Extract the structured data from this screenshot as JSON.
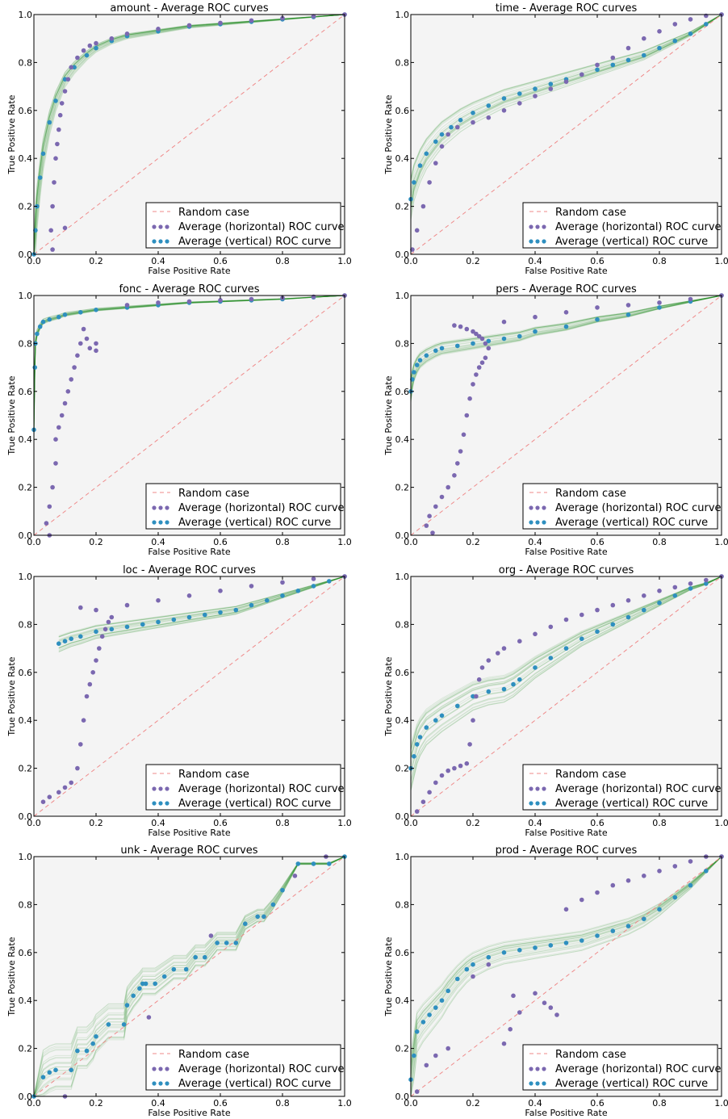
{
  "figure": {
    "xlabel": "False Positive Rate",
    "ylabel": "True Positive Rate",
    "ticks": [
      "0.0",
      "0.2",
      "0.4",
      "0.6",
      "0.8",
      "1.0"
    ],
    "legend": {
      "random": "Random case",
      "horizontal": "Average (horizontal) ROC curve",
      "vertical": "Average (vertical) ROC curve"
    },
    "colors": {
      "background": "#f4f4f4",
      "random": "#ef8a8a",
      "horizontal": "#7b68b0",
      "vertical": "#2e8fbf",
      "curves": "#1f8a1f"
    }
  },
  "chart_data": [
    {
      "type": "line",
      "title": "amount - Average ROC curves",
      "xlim": [
        0,
        1
      ],
      "ylim": [
        0,
        1
      ],
      "grid": false,
      "legend_position": "lower-right",
      "series": [
        {
          "name": "Average (vertical) ROC curve",
          "x": [
            0.0,
            0.005,
            0.01,
            0.02,
            0.03,
            0.05,
            0.07,
            0.1,
            0.13,
            0.17,
            0.2,
            0.25,
            0.3,
            0.4,
            0.5,
            0.6,
            0.7,
            0.8,
            0.9,
            1.0
          ],
          "y": [
            0.0,
            0.1,
            0.2,
            0.32,
            0.42,
            0.55,
            0.64,
            0.73,
            0.78,
            0.83,
            0.86,
            0.89,
            0.91,
            0.93,
            0.95,
            0.96,
            0.97,
            0.98,
            0.99,
            1.0
          ]
        },
        {
          "name": "Average (horizontal) ROC curve",
          "x": [
            0.1,
            0.06,
            0.055,
            0.06,
            0.065,
            0.07,
            0.075,
            0.08,
            0.085,
            0.09,
            0.1,
            0.11,
            0.12,
            0.14,
            0.16,
            0.18,
            0.2,
            0.25,
            0.3,
            0.4,
            0.5,
            0.6,
            0.7,
            0.8,
            0.9,
            1.0
          ],
          "y": [
            0.11,
            0.02,
            0.1,
            0.2,
            0.3,
            0.4,
            0.46,
            0.52,
            0.58,
            0.63,
            0.68,
            0.73,
            0.78,
            0.82,
            0.85,
            0.87,
            0.88,
            0.9,
            0.92,
            0.94,
            0.955,
            0.965,
            0.975,
            0.985,
            0.993,
            1.0
          ]
        }
      ]
    },
    {
      "type": "line",
      "title": "time - Average ROC curves",
      "xlim": [
        0,
        1
      ],
      "ylim": [
        0,
        1
      ],
      "grid": false,
      "legend_position": "lower-right",
      "series": [
        {
          "name": "Average (vertical) ROC curve",
          "x": [
            0.0,
            0.01,
            0.03,
            0.05,
            0.08,
            0.1,
            0.13,
            0.16,
            0.2,
            0.25,
            0.3,
            0.35,
            0.4,
            0.45,
            0.5,
            0.55,
            0.6,
            0.65,
            0.7,
            0.75,
            0.8,
            0.85,
            0.9,
            0.95,
            1.0
          ],
          "y": [
            0.23,
            0.3,
            0.37,
            0.42,
            0.47,
            0.5,
            0.53,
            0.56,
            0.59,
            0.62,
            0.65,
            0.67,
            0.69,
            0.71,
            0.73,
            0.75,
            0.77,
            0.79,
            0.81,
            0.83,
            0.86,
            0.89,
            0.92,
            0.96,
            1.0
          ]
        },
        {
          "name": "Average (horizontal) ROC curve",
          "x": [
            0.005,
            0.02,
            0.04,
            0.06,
            0.08,
            0.1,
            0.12,
            0.15,
            0.2,
            0.25,
            0.3,
            0.35,
            0.4,
            0.45,
            0.5,
            0.55,
            0.6,
            0.65,
            0.7,
            0.75,
            0.8,
            0.85,
            0.9,
            0.95,
            1.0
          ],
          "y": [
            0.02,
            0.1,
            0.2,
            0.3,
            0.38,
            0.45,
            0.5,
            0.53,
            0.55,
            0.57,
            0.6,
            0.63,
            0.66,
            0.69,
            0.72,
            0.75,
            0.79,
            0.82,
            0.86,
            0.9,
            0.93,
            0.96,
            0.98,
            0.995,
            1.0
          ]
        }
      ]
    },
    {
      "type": "line",
      "title": "fonc - Average ROC curves",
      "xlim": [
        0,
        1
      ],
      "ylim": [
        0,
        1
      ],
      "grid": false,
      "legend_position": "lower-right",
      "series": [
        {
          "name": "Average (vertical) ROC curve",
          "x": [
            0.0,
            0.003,
            0.005,
            0.01,
            0.02,
            0.03,
            0.05,
            0.08,
            0.1,
            0.15,
            0.2,
            0.3,
            0.4,
            0.5,
            0.6,
            0.7,
            0.8,
            0.9,
            1.0
          ],
          "y": [
            0.44,
            0.7,
            0.8,
            0.84,
            0.87,
            0.89,
            0.9,
            0.91,
            0.92,
            0.93,
            0.94,
            0.95,
            0.96,
            0.97,
            0.975,
            0.98,
            0.985,
            0.993,
            1.0
          ]
        },
        {
          "name": "Average (horizontal) ROC curve",
          "x": [
            0.05,
            0.04,
            0.05,
            0.06,
            0.07,
            0.07,
            0.08,
            0.09,
            0.1,
            0.11,
            0.12,
            0.13,
            0.14,
            0.15,
            0.16,
            0.17,
            0.18,
            0.2,
            0.2,
            0.3,
            0.4,
            0.5,
            0.6,
            0.7,
            0.8,
            0.9,
            1.0
          ],
          "y": [
            0.0,
            0.05,
            0.12,
            0.2,
            0.3,
            0.4,
            0.45,
            0.5,
            0.55,
            0.6,
            0.65,
            0.7,
            0.75,
            0.8,
            0.86,
            0.82,
            0.78,
            0.77,
            0.8,
            0.96,
            0.97,
            0.975,
            0.98,
            0.985,
            0.99,
            0.995,
            1.0
          ]
        }
      ]
    },
    {
      "type": "line",
      "title": "pers - Average ROC curves",
      "xlim": [
        0,
        1
      ],
      "ylim": [
        0,
        1
      ],
      "grid": false,
      "legend_position": "lower-right",
      "series": [
        {
          "name": "Average (vertical) ROC curve",
          "x": [
            0.0,
            0.005,
            0.01,
            0.02,
            0.03,
            0.05,
            0.08,
            0.1,
            0.15,
            0.2,
            0.25,
            0.3,
            0.35,
            0.4,
            0.5,
            0.6,
            0.7,
            0.8,
            0.9,
            1.0
          ],
          "y": [
            0.6,
            0.65,
            0.68,
            0.71,
            0.73,
            0.75,
            0.77,
            0.78,
            0.79,
            0.8,
            0.81,
            0.82,
            0.83,
            0.85,
            0.87,
            0.9,
            0.92,
            0.95,
            0.975,
            1.0
          ]
        },
        {
          "name": "Average (horizontal) ROC curve",
          "x": [
            0.07,
            0.05,
            0.06,
            0.08,
            0.1,
            0.12,
            0.14,
            0.15,
            0.16,
            0.17,
            0.18,
            0.19,
            0.2,
            0.21,
            0.22,
            0.23,
            0.24,
            0.25,
            0.24,
            0.23,
            0.22,
            0.21,
            0.2,
            0.18,
            0.16,
            0.14,
            0.3,
            0.4,
            0.5,
            0.6,
            0.7,
            0.8,
            0.9,
            1.0
          ],
          "y": [
            0.01,
            0.04,
            0.08,
            0.12,
            0.16,
            0.2,
            0.25,
            0.3,
            0.35,
            0.42,
            0.5,
            0.57,
            0.63,
            0.67,
            0.7,
            0.72,
            0.74,
            0.78,
            0.8,
            0.82,
            0.83,
            0.84,
            0.85,
            0.86,
            0.87,
            0.875,
            0.89,
            0.91,
            0.93,
            0.95,
            0.96,
            0.97,
            0.985,
            1.0
          ]
        }
      ]
    },
    {
      "type": "line",
      "title": "loc - Average ROC curves",
      "xlim": [
        0,
        1
      ],
      "ylim": [
        0,
        1
      ],
      "grid": false,
      "legend_position": "lower-right",
      "series": [
        {
          "name": "Average (vertical) ROC curve",
          "x": [
            0.08,
            0.1,
            0.12,
            0.15,
            0.2,
            0.25,
            0.3,
            0.35,
            0.4,
            0.45,
            0.5,
            0.55,
            0.6,
            0.65,
            0.7,
            0.75,
            0.8,
            0.85,
            0.9,
            0.95,
            1.0
          ],
          "y": [
            0.72,
            0.73,
            0.74,
            0.75,
            0.77,
            0.78,
            0.79,
            0.8,
            0.81,
            0.82,
            0.83,
            0.84,
            0.85,
            0.86,
            0.88,
            0.9,
            0.92,
            0.94,
            0.96,
            0.98,
            1.0
          ]
        },
        {
          "name": "Average (horizontal) ROC curve",
          "x": [
            0.03,
            0.05,
            0.08,
            0.1,
            0.12,
            0.14,
            0.15,
            0.16,
            0.17,
            0.18,
            0.19,
            0.2,
            0.21,
            0.22,
            0.23,
            0.24,
            0.25,
            0.2,
            0.15,
            0.3,
            0.4,
            0.5,
            0.6,
            0.7,
            0.8,
            0.9,
            1.0
          ],
          "y": [
            0.06,
            0.08,
            0.1,
            0.12,
            0.14,
            0.2,
            0.3,
            0.4,
            0.5,
            0.55,
            0.6,
            0.65,
            0.7,
            0.75,
            0.78,
            0.81,
            0.83,
            0.86,
            0.87,
            0.88,
            0.9,
            0.92,
            0.94,
            0.96,
            0.975,
            0.99,
            1.0
          ]
        }
      ]
    },
    {
      "type": "line",
      "title": "org - Average ROC curves",
      "xlim": [
        0,
        1
      ],
      "ylim": [
        0,
        1
      ],
      "grid": false,
      "legend_position": "lower-right",
      "series": [
        {
          "name": "Average (vertical) ROC curve",
          "x": [
            0.0,
            0.01,
            0.02,
            0.03,
            0.05,
            0.08,
            0.1,
            0.15,
            0.2,
            0.25,
            0.3,
            0.33,
            0.35,
            0.4,
            0.45,
            0.5,
            0.55,
            0.6,
            0.65,
            0.7,
            0.75,
            0.8,
            0.85,
            0.9,
            0.95,
            1.0
          ],
          "y": [
            0.2,
            0.25,
            0.3,
            0.33,
            0.37,
            0.4,
            0.42,
            0.46,
            0.5,
            0.52,
            0.53,
            0.55,
            0.57,
            0.62,
            0.66,
            0.7,
            0.74,
            0.77,
            0.8,
            0.83,
            0.86,
            0.89,
            0.92,
            0.95,
            0.97,
            1.0
          ]
        },
        {
          "name": "Average (horizontal) ROC curve",
          "x": [
            0.02,
            0.04,
            0.06,
            0.08,
            0.1,
            0.12,
            0.14,
            0.16,
            0.18,
            0.19,
            0.2,
            0.21,
            0.22,
            0.23,
            0.25,
            0.28,
            0.3,
            0.35,
            0.4,
            0.45,
            0.5,
            0.55,
            0.6,
            0.65,
            0.7,
            0.75,
            0.8,
            0.85,
            0.9,
            0.95,
            1.0
          ],
          "y": [
            0.02,
            0.06,
            0.1,
            0.14,
            0.17,
            0.19,
            0.2,
            0.21,
            0.22,
            0.3,
            0.4,
            0.5,
            0.57,
            0.62,
            0.65,
            0.68,
            0.7,
            0.73,
            0.76,
            0.79,
            0.82,
            0.84,
            0.86,
            0.88,
            0.9,
            0.92,
            0.94,
            0.955,
            0.97,
            0.985,
            1.0
          ]
        }
      ]
    },
    {
      "type": "line",
      "title": "unk - Average ROC curves",
      "xlim": [
        0,
        1
      ],
      "ylim": [
        0,
        1
      ],
      "grid": false,
      "legend_position": "lower-right",
      "series": [
        {
          "name": "Average (vertical) ROC curve",
          "x": [
            0.0,
            0.03,
            0.05,
            0.07,
            0.12,
            0.14,
            0.17,
            0.19,
            0.2,
            0.24,
            0.29,
            0.3,
            0.32,
            0.34,
            0.35,
            0.36,
            0.39,
            0.42,
            0.45,
            0.49,
            0.52,
            0.55,
            0.59,
            0.62,
            0.65,
            0.68,
            0.72,
            0.74,
            0.77,
            0.8,
            0.85,
            0.9,
            0.95,
            1.0
          ],
          "y": [
            0.0,
            0.08,
            0.1,
            0.11,
            0.11,
            0.19,
            0.19,
            0.22,
            0.25,
            0.3,
            0.3,
            0.38,
            0.42,
            0.45,
            0.47,
            0.47,
            0.47,
            0.5,
            0.53,
            0.53,
            0.58,
            0.58,
            0.64,
            0.64,
            0.64,
            0.72,
            0.75,
            0.75,
            0.8,
            0.86,
            0.97,
            0.97,
            0.97,
            1.0
          ]
        },
        {
          "name": "Average (horizontal) ROC curve",
          "x": [
            0.1,
            0.37,
            0.57,
            0.84,
            0.94
          ],
          "y": [
            0.0,
            0.33,
            0.67,
            0.92,
            1.0
          ]
        }
      ]
    },
    {
      "type": "line",
      "title": "prod - Average ROC curves",
      "xlim": [
        0,
        1
      ],
      "ylim": [
        0,
        1
      ],
      "grid": false,
      "legend_position": "lower-right",
      "series": [
        {
          "name": "Average (vertical) ROC curve",
          "x": [
            0.0,
            0.01,
            0.02,
            0.04,
            0.06,
            0.08,
            0.1,
            0.12,
            0.15,
            0.18,
            0.2,
            0.25,
            0.3,
            0.35,
            0.4,
            0.45,
            0.5,
            0.55,
            0.6,
            0.65,
            0.7,
            0.75,
            0.8,
            0.85,
            0.9,
            0.95,
            1.0
          ],
          "y": [
            0.07,
            0.17,
            0.27,
            0.31,
            0.34,
            0.37,
            0.4,
            0.44,
            0.49,
            0.53,
            0.55,
            0.58,
            0.6,
            0.61,
            0.62,
            0.63,
            0.64,
            0.65,
            0.67,
            0.69,
            0.71,
            0.74,
            0.78,
            0.83,
            0.88,
            0.94,
            1.0
          ]
        },
        {
          "name": "Average (horizontal) ROC curve",
          "x": [
            0.02,
            0.05,
            0.08,
            0.12,
            0.2,
            0.25,
            0.3,
            0.32,
            0.33,
            0.35,
            0.4,
            0.43,
            0.45,
            0.47,
            0.5,
            0.55,
            0.6,
            0.65,
            0.7,
            0.75,
            0.8,
            0.85,
            0.9,
            0.95,
            1.0
          ],
          "y": [
            0.02,
            0.13,
            0.17,
            0.2,
            0.5,
            0.55,
            0.22,
            0.28,
            0.42,
            0.35,
            0.43,
            0.39,
            0.37,
            0.34,
            0.78,
            0.82,
            0.85,
            0.88,
            0.9,
            0.92,
            0.94,
            0.96,
            0.98,
            1.0,
            1.0
          ]
        }
      ]
    }
  ]
}
